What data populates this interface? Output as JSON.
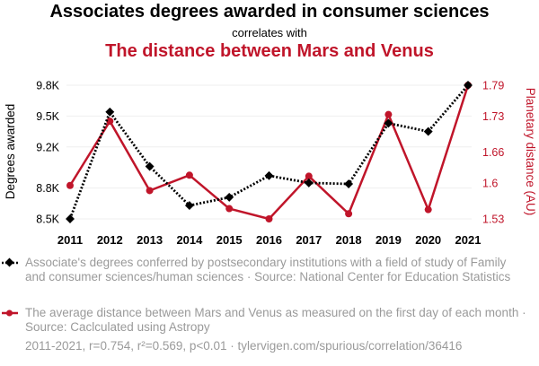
{
  "header": {
    "title": "Associates degrees awarded in consumer sciences",
    "correlates": "correlates with",
    "title2": "The distance between Mars and Venus"
  },
  "chart_data": {
    "type": "line",
    "x": [
      2011,
      2012,
      2013,
      2014,
      2015,
      2016,
      2017,
      2018,
      2019,
      2020,
      2021
    ],
    "left_axis": {
      "label": "Degrees awarded",
      "ticks": [
        "8.5K",
        "8.8K",
        "9.2K",
        "9.5K",
        "9.8K"
      ],
      "tick_values": [
        8500,
        8800,
        9200,
        9500,
        9800
      ],
      "ylim": [
        8500,
        9800
      ]
    },
    "right_axis": {
      "label": "Planetary distance (AU)",
      "ticks": [
        "1.53",
        "1.6",
        "1.66",
        "1.73",
        "1.79"
      ],
      "tick_values": [
        1.53,
        1.6,
        1.66,
        1.73,
        1.79
      ],
      "ylim": [
        1.53,
        1.79
      ]
    },
    "series": [
      {
        "name": "Associate's degrees conferred",
        "axis": "left",
        "color": "#000000",
        "style": "dotted",
        "marker": "diamond",
        "values": [
          8500,
          9540,
          9010,
          8630,
          8710,
          8920,
          8850,
          8840,
          9430,
          9350,
          9800
        ]
      },
      {
        "name": "Distance between Mars and Venus",
        "axis": "right",
        "color": "#c0152a",
        "style": "solid",
        "marker": "circle",
        "values": [
          1.595,
          1.72,
          1.585,
          1.615,
          1.55,
          1.53,
          1.613,
          1.54,
          1.733,
          1.548,
          1.79
        ]
      }
    ]
  },
  "legend": {
    "item1": "Associate's degrees conferred by postsecondary institutions with a field of study of Family and consumer sciences/human sciences · Source: National Center for Education Statistics",
    "item2": "The average distance between Mars and Venus as measured on the first day of each month · Source: Caclculated using Astropy"
  },
  "footer": "2011-2021, r=0.754, r²=0.569, p<0.01 · tylervigen.com/spurious/correlation/36416",
  "colors": {
    "series1": "#000000",
    "series2": "#c0152a",
    "muted": "#9a9a9a"
  }
}
